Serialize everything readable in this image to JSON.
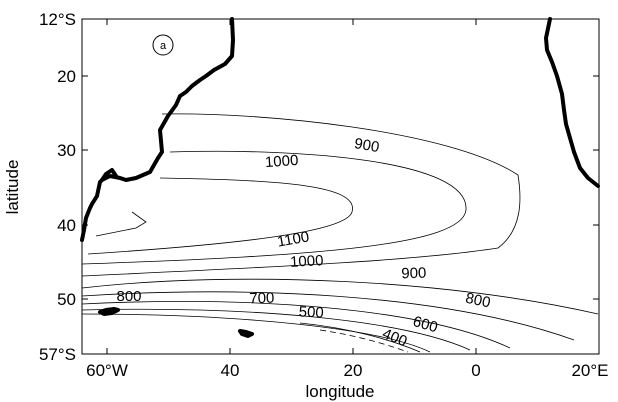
{
  "figure": {
    "panel_label": "a",
    "x_axis_label": "longitude",
    "y_axis_label": "latitude",
    "x_ticks": [
      "60°W",
      "40",
      "20",
      "0",
      "20°E"
    ],
    "y_ticks": [
      "12°S",
      "20",
      "30",
      "40",
      "50",
      "57°S"
    ],
    "contour_labels": [
      "900",
      "1000",
      "1100",
      "1000",
      "900",
      "800",
      "700",
      "800",
      "500",
      "600",
      "400"
    ],
    "coastline_color": "#000000",
    "contour_color": "#000000"
  },
  "chart_data": {
    "type": "contour",
    "xlabel": "longitude",
    "ylabel": "latitude",
    "xlim": [
      -64,
      20
    ],
    "ylim": [
      -57,
      -12
    ],
    "x_tick_values": [
      -60,
      -40,
      -20,
      0,
      20
    ],
    "y_tick_values": [
      -12,
      -20,
      -30,
      -40,
      -50,
      -57
    ],
    "contour_levels": [
      400,
      500,
      600,
      700,
      800,
      900,
      1000,
      1100
    ]
  }
}
